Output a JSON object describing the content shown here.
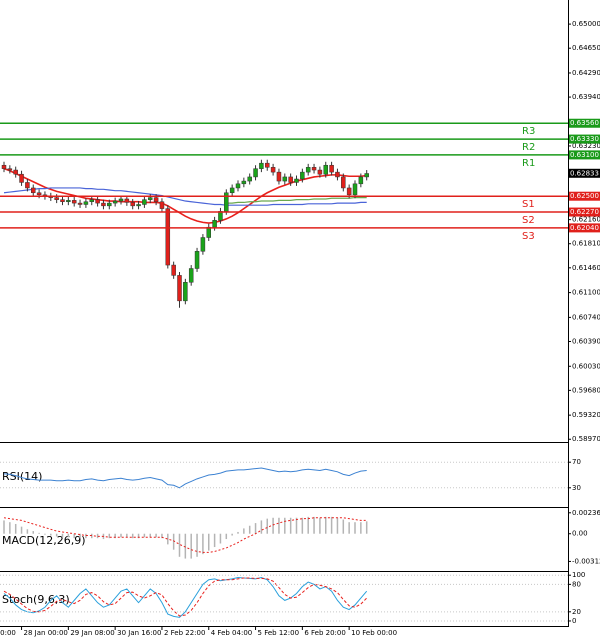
{
  "chart_data": [
    {
      "type": "candlestick",
      "open": [
        0.6295,
        0.629,
        0.6288,
        0.6282,
        0.627,
        0.6262,
        0.6255,
        0.6252,
        0.625,
        0.6248,
        0.6245,
        0.6242,
        0.6244,
        0.624,
        0.6238,
        0.6242,
        0.6245,
        0.624,
        0.6236,
        0.624,
        0.6243,
        0.6246,
        0.6241,
        0.6236,
        0.6238,
        0.6245,
        0.6248,
        0.6242,
        0.6232,
        0.615,
        0.6135,
        0.6098,
        0.6125,
        0.6145,
        0.617,
        0.619,
        0.6205,
        0.6215,
        0.6228,
        0.6255,
        0.6262,
        0.6268,
        0.6272,
        0.6278,
        0.629,
        0.6298,
        0.6292,
        0.6285,
        0.6272,
        0.6278,
        0.627,
        0.6275,
        0.6285,
        0.6292,
        0.6288,
        0.6282,
        0.6295,
        0.6285,
        0.6278,
        0.6262,
        0.6252,
        0.6268,
        0.6278
      ],
      "high": [
        0.63,
        0.6295,
        0.6293,
        0.6287,
        0.6275,
        0.6267,
        0.626,
        0.6257,
        0.6255,
        0.6253,
        0.625,
        0.6249,
        0.6249,
        0.6245,
        0.6247,
        0.625,
        0.625,
        0.6245,
        0.6245,
        0.6248,
        0.6251,
        0.6251,
        0.6246,
        0.6243,
        0.625,
        0.6253,
        0.6253,
        0.6247,
        0.6237,
        0.6155,
        0.614,
        0.613,
        0.615,
        0.6175,
        0.6195,
        0.621,
        0.622,
        0.6233,
        0.626,
        0.6267,
        0.6273,
        0.6277,
        0.6283,
        0.6295,
        0.6303,
        0.6303,
        0.6297,
        0.629,
        0.6283,
        0.6283,
        0.628,
        0.629,
        0.6297,
        0.6297,
        0.6293,
        0.63,
        0.63,
        0.629,
        0.6283,
        0.6267,
        0.6273,
        0.6283,
        0.6288
      ],
      "low": [
        0.6285,
        0.6283,
        0.6277,
        0.6265,
        0.6257,
        0.625,
        0.6247,
        0.6245,
        0.6243,
        0.624,
        0.6237,
        0.6237,
        0.6235,
        0.6233,
        0.6233,
        0.6237,
        0.6235,
        0.6231,
        0.6231,
        0.6235,
        0.6238,
        0.6236,
        0.6231,
        0.6231,
        0.6233,
        0.624,
        0.6237,
        0.6227,
        0.6145,
        0.613,
        0.6088,
        0.6093,
        0.612,
        0.614,
        0.6165,
        0.6185,
        0.62,
        0.621,
        0.6223,
        0.625,
        0.6257,
        0.6263,
        0.6267,
        0.6273,
        0.6285,
        0.6287,
        0.628,
        0.6267,
        0.6267,
        0.6265,
        0.6265,
        0.627,
        0.628,
        0.6283,
        0.6277,
        0.6277,
        0.628,
        0.6273,
        0.6257,
        0.6247,
        0.6247,
        0.6263,
        0.6273
      ],
      "close": [
        0.629,
        0.6288,
        0.6282,
        0.627,
        0.6262,
        0.6255,
        0.6252,
        0.625,
        0.6248,
        0.6245,
        0.6242,
        0.6244,
        0.624,
        0.6238,
        0.6242,
        0.6245,
        0.624,
        0.6236,
        0.624,
        0.6243,
        0.6246,
        0.6241,
        0.6236,
        0.6238,
        0.6245,
        0.6248,
        0.6242,
        0.6232,
        0.615,
        0.6135,
        0.6098,
        0.6125,
        0.6145,
        0.617,
        0.619,
        0.6205,
        0.6215,
        0.6228,
        0.6255,
        0.6262,
        0.6268,
        0.6272,
        0.6278,
        0.629,
        0.6298,
        0.6292,
        0.6285,
        0.6272,
        0.6278,
        0.627,
        0.6275,
        0.6285,
        0.6292,
        0.6288,
        0.6282,
        0.6295,
        0.6285,
        0.6278,
        0.6262,
        0.6252,
        0.6268,
        0.6278,
        0.6283
      ],
      "up_color": "#1aa31a",
      "down_color": "#e0201b",
      "moving_averages": [
        {
          "color": "#e8201c",
          "values": [
            0.629,
            0.6287,
            0.6283,
            0.6279,
            0.6275,
            0.6271,
            0.6267,
            0.6263,
            0.626,
            0.6257,
            0.6255,
            0.6253,
            0.6251,
            0.6249,
            0.6247,
            0.6246,
            0.6245,
            0.6244,
            0.6243,
            0.6243,
            0.6242,
            0.6242,
            0.6242,
            0.6242,
            0.6241,
            0.6241,
            0.6241,
            0.624,
            0.6236,
            0.6231,
            0.6226,
            0.6221,
            0.6217,
            0.6214,
            0.6212,
            0.6211,
            0.6212,
            0.6214,
            0.6217,
            0.6221,
            0.6226,
            0.6232,
            0.6238,
            0.6244,
            0.625,
            0.6255,
            0.6259,
            0.6263,
            0.6266,
            0.6269,
            0.6272,
            0.6274,
            0.6276,
            0.6278,
            0.6279,
            0.628,
            0.6281,
            0.6281,
            0.628,
            0.6279,
            0.6279,
            0.6279,
            0.628
          ]
        },
        {
          "color": "#4a64d8",
          "values": [
            0.6255,
            0.6256,
            0.6257,
            0.6258,
            0.6259,
            0.626,
            0.6261,
            0.6261,
            0.6262,
            0.6262,
            0.6262,
            0.6262,
            0.6262,
            0.6262,
            0.6261,
            0.6261,
            0.626,
            0.626,
            0.6259,
            0.6258,
            0.6258,
            0.6257,
            0.6256,
            0.6255,
            0.6254,
            0.6253,
            0.6252,
            0.6251,
            0.6249,
            0.6247,
            0.6245,
            0.6243,
            0.6242,
            0.6241,
            0.624,
            0.6239,
            0.6238,
            0.6238,
            0.6237,
            0.6237,
            0.6237,
            0.6237,
            0.6237,
            0.6237,
            0.6237,
            0.6237,
            0.6238,
            0.6238,
            0.6238,
            0.6238,
            0.6238,
            0.6238,
            0.6239,
            0.6239,
            0.6239,
            0.6239,
            0.6239,
            0.624,
            0.624,
            0.624,
            0.624,
            0.6241,
            0.6241
          ]
        },
        {
          "color": "#6aa84f",
          "values": [
            null,
            null,
            null,
            null,
            null,
            null,
            null,
            null,
            null,
            null,
            null,
            null,
            null,
            null,
            null,
            null,
            null,
            null,
            null,
            null,
            null,
            null,
            null,
            null,
            null,
            null,
            null,
            null,
            null,
            null,
            null,
            null,
            null,
            null,
            null,
            null,
            null,
            null,
            0.624,
            0.624,
            0.6241,
            0.6241,
            0.6242,
            0.6242,
            0.6243,
            0.6243,
            0.6243,
            0.6244,
            0.6244,
            0.6244,
            0.6245,
            0.6245,
            0.6245,
            0.6246,
            0.6246,
            0.6246,
            0.6247,
            0.6247,
            0.6247,
            0.6247,
            0.6248,
            0.6248,
            0.6248
          ]
        }
      ],
      "levels": [
        {
          "name": "R3",
          "value": 0.6356,
          "label": "0.63560",
          "color": "#1a9a1a"
        },
        {
          "name": "R2",
          "value": 0.6333,
          "label": "0.63330",
          "color": "#1a9a1a"
        },
        {
          "name": "R1",
          "value": 0.631,
          "label": "0.63100",
          "color": "#1a9a1a"
        },
        {
          "name": "S1",
          "value": 0.625,
          "label": "0.62500",
          "color": "#e0201b"
        },
        {
          "name": "S2",
          "value": 0.6227,
          "label": "0.62270",
          "color": "#e0201b"
        },
        {
          "name": "S3",
          "value": 0.6204,
          "label": "0.62040",
          "color": "#e0201b"
        }
      ],
      "last": {
        "value": 0.62833,
        "label": "0.62833"
      },
      "ylim": [
        0.5893,
        0.6535
      ],
      "yticks": [
        {
          "value": 0.65,
          "label": "0.65000"
        },
        {
          "value": 0.6465,
          "label": "0.64650"
        },
        {
          "value": 0.6429,
          "label": "0.64290"
        },
        {
          "value": 0.6394,
          "label": "0.63940"
        },
        {
          "value": 0.6323,
          "label": "0.63230"
        },
        {
          "value": 0.6216,
          "label": "0.62160"
        },
        {
          "value": 0.6181,
          "label": "0.61810"
        },
        {
          "value": 0.6146,
          "label": "0.61460"
        },
        {
          "value": 0.611,
          "label": "0.61100"
        },
        {
          "value": 0.6074,
          "label": "0.60740"
        },
        {
          "value": 0.6039,
          "label": "0.60390"
        },
        {
          "value": 0.6003,
          "label": "0.60030"
        },
        {
          "value": 0.5968,
          "label": "0.59680"
        },
        {
          "value": 0.5932,
          "label": "0.59320"
        },
        {
          "value": 0.5897,
          "label": "0.58970"
        }
      ],
      "xticks": [
        {
          "value": -1,
          "label": "0:00"
        },
        {
          "value": 3,
          "label": "28 Jan 00:00"
        },
        {
          "value": 11,
          "label": "29 Jan 08:00"
        },
        {
          "value": 19,
          "label": "30 Jan 16:00"
        },
        {
          "value": 27,
          "label": "2 Feb 22:00"
        },
        {
          "value": 35,
          "label": "4 Feb 04:00"
        },
        {
          "value": 43,
          "label": "5 Feb 12:00"
        },
        {
          "value": 51,
          "label": "6 Feb 20:00"
        },
        {
          "value": 59,
          "label": "10 Feb 00:00"
        }
      ]
    },
    {
      "type": "line",
      "title": "RSI(14)",
      "series": [
        {
          "color": "#3c82d2",
          "values": [
            52,
            51,
            49,
            46,
            44,
            43,
            42,
            42,
            42,
            41,
            41,
            42,
            41,
            41,
            43,
            44,
            42,
            41,
            43,
            44,
            45,
            43,
            42,
            43,
            45,
            46,
            44,
            42,
            35,
            34,
            30,
            36,
            40,
            44,
            47,
            50,
            51,
            53,
            56,
            57,
            58,
            58,
            59,
            60,
            61,
            59,
            57,
            55,
            56,
            55,
            56,
            58,
            59,
            58,
            57,
            59,
            57,
            55,
            51,
            49,
            53,
            56,
            57
          ]
        }
      ],
      "ylim": [
        0,
        100
      ],
      "yticks": [
        70,
        30
      ]
    },
    {
      "type": "macd",
      "title": "MACD(12,26,9)",
      "histogram": {
        "color": "#b4b4b4",
        "values": [
          0.0015,
          0.0013,
          0.0011,
          0.0008,
          0.0005,
          0.0003,
          0.0001,
          -0.0001,
          -0.0002,
          -0.0003,
          -0.0004,
          -0.0004,
          -0.0005,
          -0.0005,
          -0.0005,
          -0.0005,
          -0.0005,
          -0.0006,
          -0.0005,
          -0.0005,
          -0.0004,
          -0.0004,
          -0.0005,
          -0.0005,
          -0.0004,
          -0.0004,
          -0.0004,
          -0.0005,
          -0.0012,
          -0.0018,
          -0.0026,
          -0.0028,
          -0.0028,
          -0.0026,
          -0.0023,
          -0.0019,
          -0.0015,
          -0.0011,
          -0.0006,
          -0.0002,
          0.0002,
          0.0006,
          0.0009,
          0.0012,
          0.0015,
          0.0017,
          0.0018,
          0.0018,
          0.0018,
          0.0018,
          0.0018,
          0.0018,
          0.0019,
          0.0019,
          0.0018,
          0.0019,
          0.0019,
          0.0018,
          0.0016,
          0.0013,
          0.0013,
          0.0013,
          0.0014
        ]
      },
      "signal": {
        "color": "#e8201c",
        "values": [
          0.0018,
          0.0017,
          0.0016,
          0.0015,
          0.0013,
          0.0011,
          0.0009,
          0.0007,
          0.0005,
          0.0003,
          0.0002,
          0.0001,
          0.0,
          -0.0001,
          -0.0002,
          -0.0002,
          -0.0003,
          -0.0003,
          -0.0004,
          -0.0004,
          -0.0004,
          -0.0004,
          -0.0004,
          -0.0004,
          -0.0004,
          -0.0004,
          -0.0004,
          -0.0004,
          -0.0006,
          -0.0008,
          -0.0012,
          -0.0015,
          -0.0018,
          -0.002,
          -0.0021,
          -0.0021,
          -0.002,
          -0.0018,
          -0.0016,
          -0.0013,
          -0.001,
          -0.0006,
          -0.0003,
          0.0,
          0.0004,
          0.0007,
          0.001,
          0.0012,
          0.0014,
          0.0015,
          0.0016,
          0.0017,
          0.0017,
          0.0018,
          0.0018,
          0.0018,
          0.0018,
          0.0018,
          0.0018,
          0.0017,
          0.0016,
          0.0015,
          0.0015
        ]
      },
      "ylim": [
        -0.0042,
        0.0029
      ],
      "yticks": [
        {
          "value": 0.00236,
          "label": "0.00236"
        },
        {
          "value": 0,
          "label": "0.00"
        },
        {
          "value": -0.00312,
          "label": "-0.00312"
        }
      ]
    },
    {
      "type": "stochastic",
      "title": "Stoch(9,6,3)",
      "series": [
        {
          "color": "#2aa0dc",
          "values": [
            60,
            50,
            35,
            25,
            20,
            18,
            22,
            30,
            45,
            55,
            40,
            30,
            45,
            60,
            70,
            55,
            40,
            30,
            35,
            50,
            65,
            70,
            55,
            40,
            55,
            70,
            60,
            40,
            15,
            10,
            8,
            20,
            40,
            60,
            80,
            90,
            92,
            88,
            90,
            92,
            95,
            94,
            93,
            92,
            95,
            90,
            75,
            55,
            45,
            50,
            60,
            75,
            85,
            80,
            70,
            75,
            65,
            45,
            30,
            25,
            35,
            50,
            65
          ]
        },
        {
          "color": "#e8201c",
          "dash": true,
          "values": [
            65,
            58,
            48,
            37,
            27,
            21,
            20,
            23,
            32,
            43,
            47,
            42,
            38,
            45,
            58,
            62,
            55,
            42,
            35,
            38,
            50,
            62,
            63,
            55,
            50,
            55,
            62,
            57,
            38,
            22,
            11,
            13,
            23,
            40,
            60,
            77,
            87,
            90,
            90,
            90,
            92,
            94,
            94,
            93,
            93,
            92,
            87,
            73,
            58,
            50,
            52,
            62,
            73,
            80,
            78,
            75,
            70,
            62,
            47,
            33,
            30,
            37,
            50
          ]
        }
      ],
      "ylim": [
        -11,
        107
      ],
      "yticks": [
        100,
        80,
        20,
        0
      ]
    }
  ]
}
